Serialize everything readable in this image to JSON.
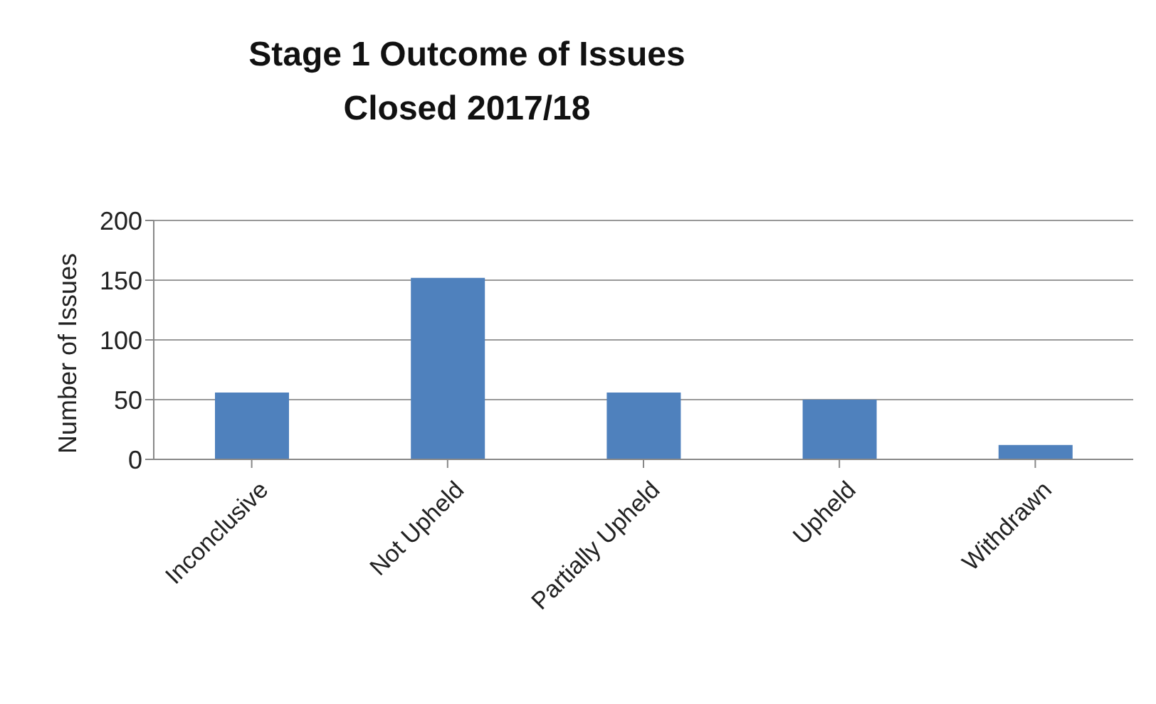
{
  "chart_data": {
    "type": "bar",
    "title": "Stage 1 Outcome of Issues Closed 2017/18",
    "ylabel": "Number of Issues",
    "categories": [
      "Inconclusive",
      "Not Upheld",
      "Partially Upheld",
      "Upheld",
      "Withdrawn"
    ],
    "values": [
      56,
      152,
      56,
      50,
      12
    ],
    "color": "#4f81bd",
    "ylim": [
      0,
      200
    ],
    "yticks": [
      0,
      50,
      100,
      150,
      200
    ],
    "grid": "y",
    "legend": false
  }
}
